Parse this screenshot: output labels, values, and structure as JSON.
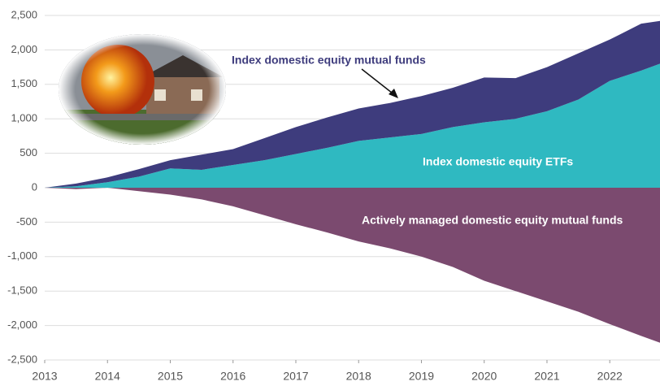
{
  "chart_data": {
    "type": "stacked-area",
    "x": [
      2013,
      2013.5,
      2014,
      2014.5,
      2015,
      2015.5,
      2016,
      2016.5,
      2017,
      2017.5,
      2018,
      2018.5,
      2019,
      2019.5,
      2020,
      2020.5,
      2021,
      2021.5,
      2022,
      2022.5,
      2022.8
    ],
    "series": [
      {
        "name": "Index domestic equity ETFs",
        "color": "#2fb9c1",
        "values": [
          0,
          20,
          80,
          160,
          280,
          260,
          330,
          400,
          490,
          580,
          680,
          730,
          780,
          880,
          950,
          1000,
          1110,
          1280,
          1550,
          1700,
          1800
        ]
      },
      {
        "name": "Index domestic equity mutual funds",
        "color": "#3e3c7d",
        "values": [
          0,
          40,
          70,
          110,
          120,
          220,
          230,
          320,
          390,
          440,
          470,
          500,
          550,
          570,
          650,
          590,
          640,
          670,
          600,
          680,
          620
        ]
      },
      {
        "name": "Actively managed domestic equity mutual funds",
        "color": "#7b4a6f",
        "values": [
          0,
          -20,
          0,
          -50,
          -100,
          -170,
          -270,
          -400,
          -530,
          -650,
          -780,
          -880,
          -1000,
          -1150,
          -1350,
          -1500,
          -1650,
          -1800,
          -1980,
          -2150,
          -2250
        ]
      }
    ],
    "xlim": [
      2013,
      2022.8
    ],
    "xticks": [
      2013,
      2014,
      2015,
      2016,
      2017,
      2018,
      2019,
      2020,
      2021,
      2022
    ],
    "ylim": [
      -2500,
      2500
    ],
    "yticks": [
      {
        "value": -2500,
        "label": "-2,500"
      },
      {
        "value": -2000,
        "label": "-2,000"
      },
      {
        "value": -1500,
        "label": "-1,500"
      },
      {
        "value": -1000,
        "label": "-1,000"
      },
      -500,
      0,
      500,
      {
        "value": 1000,
        "label": "1,000"
      },
      {
        "value": 1500,
        "label": "1,500"
      },
      {
        "value": 2000,
        "label": "2,000"
      },
      {
        "value": 2500,
        "label": "2,500"
      }
    ],
    "grid": true
  }
}
